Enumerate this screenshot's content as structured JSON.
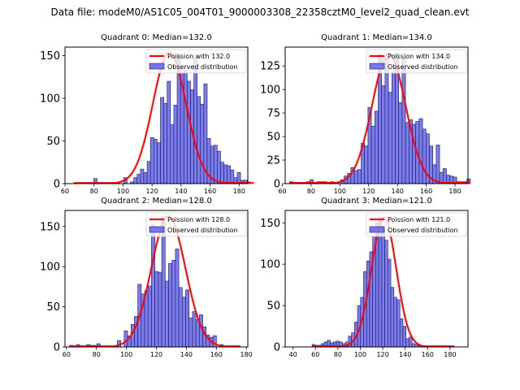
{
  "suptitle": "Data file: modeM0/AS1C05_004T01_9000003308_22358cztM0_level2_quad_clean.evt",
  "colors": {
    "bar_fill": "#7575f0",
    "bar_edge": "#1a1a4d",
    "fit_line": "#ff0000"
  },
  "chart_data": [
    {
      "type": "bar",
      "title": "Quadrant 0: Median=132.0",
      "legend": [
        "Poission with 132.0",
        "Observed distribution"
      ],
      "legend_position": "top-right",
      "median": 132.0,
      "xlim": [
        60,
        186
      ],
      "ylim": [
        0,
        160
      ],
      "xticks": [
        60,
        80,
        100,
        120,
        140,
        160,
        180
      ],
      "yticks": [
        0,
        50,
        100,
        150
      ],
      "bin_start": 66,
      "bin_width": 2.3,
      "values": [
        0,
        0,
        0,
        0,
        0,
        0,
        6,
        0,
        0,
        0,
        0,
        0,
        0,
        0,
        0,
        7,
        0,
        2,
        7,
        11,
        17,
        13,
        26,
        54,
        52,
        48,
        101,
        94,
        120,
        69,
        92,
        152,
        130,
        133,
        120,
        110,
        148,
        102,
        93,
        117,
        53,
        44,
        45,
        38,
        25,
        22,
        21,
        16,
        7,
        13,
        4,
        4,
        2,
        0
      ],
      "fit_peak": 154
    },
    {
      "type": "bar",
      "title": "Quadrant 1: Median=134.0",
      "legend": [
        "Poission with 134.0",
        "Observed distribution"
      ],
      "legend_position": "top-right",
      "median": 134.0,
      "xlim": [
        62,
        189
      ],
      "ylim": [
        0,
        145
      ],
      "xticks": [
        60,
        80,
        100,
        120,
        140,
        160,
        180
      ],
      "yticks": [
        0,
        25,
        50,
        75,
        100,
        125
      ],
      "bin_start": 65,
      "bin_width": 2.37,
      "values": [
        2,
        0,
        0,
        0,
        0,
        2,
        4,
        0,
        2,
        2,
        2,
        0,
        2,
        0,
        0,
        4,
        8,
        11,
        17,
        14,
        15,
        43,
        40,
        81,
        61,
        77,
        137,
        104,
        133,
        97,
        119,
        138,
        86,
        133,
        65,
        68,
        63,
        66,
        69,
        58,
        53,
        40,
        20,
        41,
        12,
        16,
        9,
        8,
        7,
        2,
        2,
        2,
        5
      ],
      "fit_peak": 138
    },
    {
      "type": "bar",
      "title": "Quadrant 2: Median=128.0",
      "legend": [
        "Poission with 128.0",
        "Observed distribution"
      ],
      "legend_position": "top-right",
      "median": 128.0,
      "xlim": [
        59,
        181
      ],
      "ylim": [
        0,
        170
      ],
      "xticks": [
        60,
        80,
        100,
        120,
        140,
        160,
        180
      ],
      "yticks": [
        0,
        50,
        100,
        150
      ],
      "bin_start": 62,
      "bin_width": 2.28,
      "values": [
        2,
        0,
        3,
        0,
        0,
        3,
        2,
        2,
        4,
        0,
        0,
        0,
        0,
        0,
        8,
        0,
        20,
        14,
        28,
        38,
        78,
        66,
        70,
        76,
        152,
        94,
        93,
        162,
        82,
        104,
        108,
        122,
        74,
        62,
        71,
        36,
        44,
        34,
        40,
        25,
        15,
        12,
        14,
        0,
        3,
        0,
        0,
        0,
        0,
        0
      ],
      "fit_peak": 163
    },
    {
      "type": "bar",
      "title": "Quadrant 3: Median=121.0",
      "legend": [
        "Poission with 121.0",
        "Observed distribution"
      ],
      "legend_position": "top-right",
      "median": 121.0,
      "xlim": [
        33,
        196
      ],
      "ylim": [
        0,
        165
      ],
      "xticks": [
        40,
        60,
        80,
        100,
        120,
        140,
        160,
        180
      ],
      "yticks": [
        0,
        50,
        100,
        150
      ],
      "bin_start": 57,
      "bin_width": 2.7,
      "values": [
        3,
        2,
        2,
        4,
        6,
        8,
        5,
        6,
        7,
        6,
        4,
        6,
        13,
        17,
        30,
        50,
        60,
        91,
        104,
        115,
        134,
        150,
        157,
        143,
        129,
        106,
        72,
        60,
        57,
        34,
        25,
        10,
        12,
        4,
        3,
        2,
        1,
        1,
        0,
        0,
        0,
        0,
        0,
        0,
        0,
        0,
        0
      ],
      "fit_peak": 157
    }
  ]
}
